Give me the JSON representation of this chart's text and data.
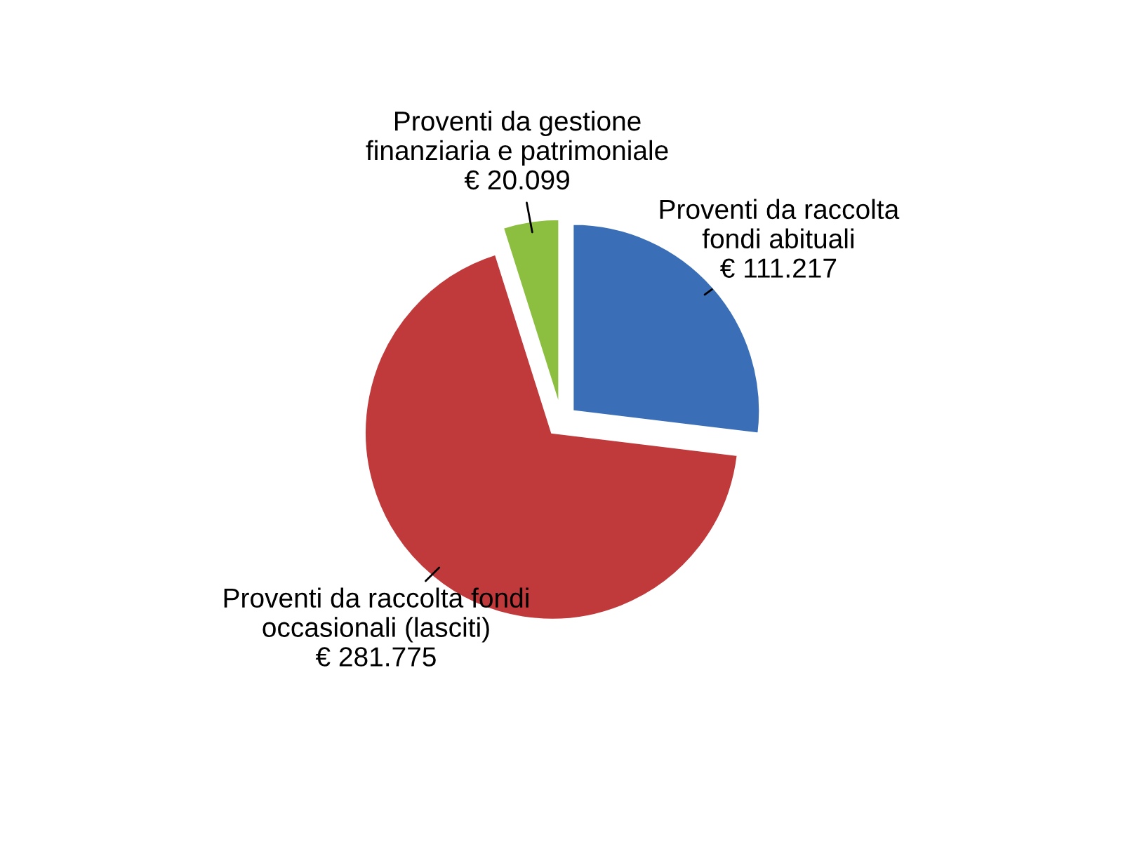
{
  "chart_data": {
    "type": "pie",
    "categories": [
      "Proventi da raccolta\nfondi abituali",
      "Proventi da raccolta fondi\noccasionali (lasciti)",
      "Proventi da gestione\nfinanziaria e patrimoniale"
    ],
    "values": [
      111217,
      281775,
      20099
    ],
    "value_labels": [
      "€ 111.217",
      "€ 281.775",
      "€ 20.099"
    ],
    "colors": [
      "#3a6fb8",
      "#c0393b",
      "#8cbf3f"
    ],
    "legend": false
  }
}
